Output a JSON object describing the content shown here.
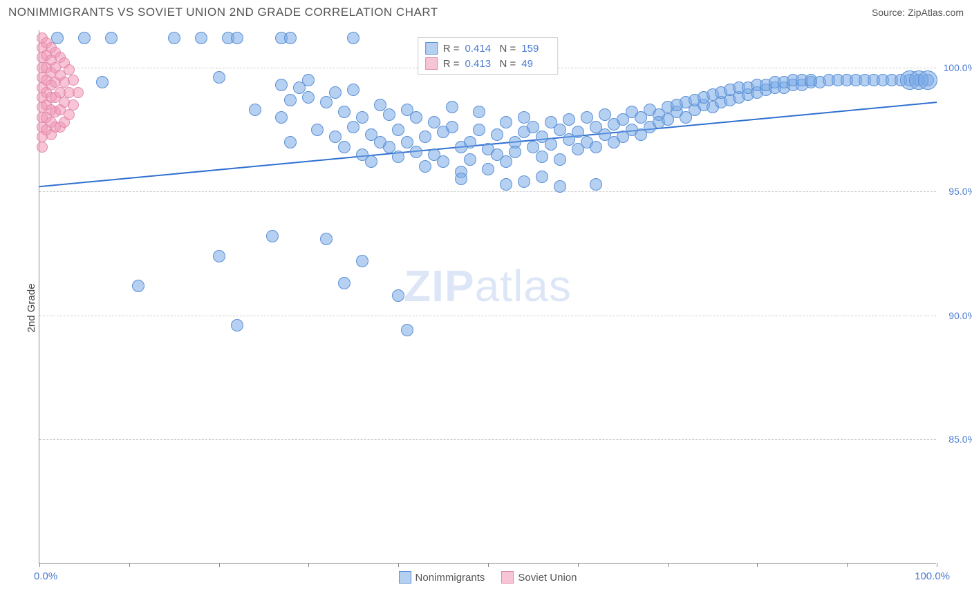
{
  "header": {
    "title": "NONIMMIGRANTS VS SOVIET UNION 2ND GRADE CORRELATION CHART",
    "source": "Source: ZipAtlas.com"
  },
  "chart": {
    "type": "scatter",
    "ylabel": "2nd Grade",
    "xlim": [
      0,
      100
    ],
    "ylim": [
      80,
      101.5
    ],
    "background_color": "#ffffff",
    "grid_color": "#cccccc",
    "axis_color": "#888888",
    "label_color": "#4a7bd0",
    "yticks": [
      85.0,
      90.0,
      95.0,
      100.0
    ],
    "ytick_labels": [
      "85.0%",
      "90.0%",
      "95.0%",
      "100.0%"
    ],
    "xticks": [
      0,
      10,
      20,
      30,
      40,
      50,
      60,
      70,
      80,
      90,
      100
    ],
    "x_start_label": "0.0%",
    "x_end_label": "100.0%",
    "watermark": "ZIPatlas",
    "trendline": {
      "color": "#2f6fd0",
      "width": 2,
      "y_at_x0": 95.2,
      "y_at_x100": 98.6
    },
    "series": [
      {
        "name": "Nonimmigrants",
        "fill": "rgba(120,170,230,0.55)",
        "stroke": "#5a8fd6",
        "R": "0.414",
        "N": "159",
        "marker_radius": 9,
        "points": [
          [
            2,
            101.2
          ],
          [
            5,
            101.2
          ],
          [
            8,
            101.2
          ],
          [
            15,
            101.2
          ],
          [
            18,
            101.2
          ],
          [
            21,
            101.2
          ],
          [
            22,
            101.2
          ],
          [
            27,
            101.2
          ],
          [
            28,
            101.2
          ],
          [
            35,
            101.2
          ],
          [
            7,
            99.4
          ],
          [
            20,
            99.6
          ],
          [
            24,
            98.3
          ],
          [
            27,
            98.0
          ],
          [
            27,
            99.3
          ],
          [
            28,
            98.7
          ],
          [
            28,
            97.0
          ],
          [
            29,
            99.2
          ],
          [
            30,
            99.5
          ],
          [
            30,
            98.8
          ],
          [
            31,
            97.5
          ],
          [
            32,
            98.6
          ],
          [
            33,
            97.2
          ],
          [
            33,
            99.0
          ],
          [
            34,
            96.8
          ],
          [
            34,
            98.2
          ],
          [
            35,
            97.6
          ],
          [
            35,
            99.1
          ],
          [
            36,
            96.5
          ],
          [
            36,
            98.0
          ],
          [
            37,
            97.3
          ],
          [
            37,
            96.2
          ],
          [
            38,
            98.5
          ],
          [
            38,
            97.0
          ],
          [
            39,
            96.8
          ],
          [
            39,
            98.1
          ],
          [
            40,
            97.5
          ],
          [
            40,
            96.4
          ],
          [
            41,
            98.3
          ],
          [
            41,
            97.0
          ],
          [
            42,
            96.6
          ],
          [
            42,
            98.0
          ],
          [
            43,
            97.2
          ],
          [
            43,
            96.0
          ],
          [
            44,
            97.8
          ],
          [
            44,
            96.5
          ],
          [
            45,
            97.4
          ],
          [
            45,
            96.2
          ],
          [
            46,
            97.6
          ],
          [
            46,
            98.4
          ],
          [
            47,
            96.8
          ],
          [
            47,
            95.8
          ],
          [
            48,
            97.0
          ],
          [
            48,
            96.3
          ],
          [
            49,
            97.5
          ],
          [
            49,
            98.2
          ],
          [
            50,
            96.7
          ],
          [
            50,
            95.9
          ],
          [
            51,
            97.3
          ],
          [
            51,
            96.5
          ],
          [
            52,
            97.8
          ],
          [
            52,
            96.2
          ],
          [
            53,
            97.0
          ],
          [
            53,
            96.6
          ],
          [
            54,
            97.4
          ],
          [
            54,
            98.0
          ],
          [
            55,
            96.8
          ],
          [
            55,
            97.6
          ],
          [
            56,
            96.4
          ],
          [
            56,
            97.2
          ],
          [
            57,
            97.8
          ],
          [
            57,
            96.9
          ],
          [
            58,
            97.5
          ],
          [
            58,
            96.3
          ],
          [
            59,
            97.1
          ],
          [
            59,
            97.9
          ],
          [
            60,
            96.7
          ],
          [
            60,
            97.4
          ],
          [
            61,
            97.0
          ],
          [
            61,
            98.0
          ],
          [
            62,
            97.6
          ],
          [
            62,
            96.8
          ],
          [
            63,
            97.3
          ],
          [
            63,
            98.1
          ],
          [
            64,
            97.7
          ],
          [
            64,
            97.0
          ],
          [
            65,
            97.9
          ],
          [
            65,
            97.2
          ],
          [
            66,
            98.2
          ],
          [
            66,
            97.5
          ],
          [
            67,
            98.0
          ],
          [
            67,
            97.3
          ],
          [
            68,
            98.3
          ],
          [
            68,
            97.6
          ],
          [
            69,
            98.1
          ],
          [
            69,
            97.8
          ],
          [
            70,
            98.4
          ],
          [
            70,
            97.9
          ],
          [
            71,
            98.2
          ],
          [
            71,
            98.5
          ],
          [
            72,
            98.0
          ],
          [
            72,
            98.6
          ],
          [
            73,
            98.3
          ],
          [
            73,
            98.7
          ],
          [
            74,
            98.5
          ],
          [
            74,
            98.8
          ],
          [
            75,
            98.4
          ],
          [
            75,
            98.9
          ],
          [
            76,
            98.6
          ],
          [
            76,
            99.0
          ],
          [
            77,
            98.7
          ],
          [
            77,
            99.1
          ],
          [
            78,
            98.8
          ],
          [
            78,
            99.2
          ],
          [
            79,
            98.9
          ],
          [
            79,
            99.2
          ],
          [
            80,
            99.0
          ],
          [
            80,
            99.3
          ],
          [
            81,
            99.1
          ],
          [
            81,
            99.3
          ],
          [
            82,
            99.2
          ],
          [
            82,
            99.4
          ],
          [
            83,
            99.2
          ],
          [
            83,
            99.4
          ],
          [
            84,
            99.3
          ],
          [
            84,
            99.5
          ],
          [
            85,
            99.3
          ],
          [
            85,
            99.5
          ],
          [
            86,
            99.4
          ],
          [
            86,
            99.5
          ],
          [
            87,
            99.4
          ],
          [
            88,
            99.5
          ],
          [
            89,
            99.5
          ],
          [
            90,
            99.5
          ],
          [
            91,
            99.5
          ],
          [
            92,
            99.5
          ],
          [
            93,
            99.5
          ],
          [
            94,
            99.5
          ],
          [
            95,
            99.5
          ],
          [
            96,
            99.5
          ],
          [
            97,
            99.5
          ],
          [
            98,
            99.5
          ],
          [
            99,
            99.5
          ],
          [
            11,
            91.2
          ],
          [
            20,
            92.4
          ],
          [
            22,
            89.6
          ],
          [
            26,
            93.2
          ],
          [
            32,
            93.1
          ],
          [
            34,
            91.3
          ],
          [
            36,
            92.2
          ],
          [
            40,
            90.8
          ],
          [
            41,
            89.4
          ],
          [
            47,
            95.5
          ],
          [
            52,
            95.3
          ],
          [
            54,
            95.4
          ],
          [
            56,
            95.6
          ],
          [
            58,
            95.2
          ],
          [
            62,
            95.3
          ]
        ],
        "big_points": [
          [
            97,
            99.5
          ],
          [
            98,
            99.5
          ],
          [
            99,
            99.5
          ]
        ]
      },
      {
        "name": "Soviet Union",
        "fill": "rgba(240,150,180,0.55)",
        "stroke": "#e08bad",
        "R": "0.413",
        "N": "49",
        "marker_radius": 8,
        "points": [
          [
            0.3,
            101.2
          ],
          [
            0.3,
            100.8
          ],
          [
            0.3,
            100.4
          ],
          [
            0.3,
            100.0
          ],
          [
            0.3,
            99.6
          ],
          [
            0.3,
            99.2
          ],
          [
            0.3,
            98.8
          ],
          [
            0.3,
            98.4
          ],
          [
            0.3,
            98.0
          ],
          [
            0.3,
            97.6
          ],
          [
            0.3,
            97.2
          ],
          [
            0.3,
            96.8
          ],
          [
            0.8,
            101.0
          ],
          [
            0.8,
            100.5
          ],
          [
            0.8,
            100.0
          ],
          [
            0.8,
            99.5
          ],
          [
            0.8,
            99.0
          ],
          [
            0.8,
            98.5
          ],
          [
            0.8,
            98.0
          ],
          [
            0.8,
            97.5
          ],
          [
            1.3,
            100.8
          ],
          [
            1.3,
            100.3
          ],
          [
            1.3,
            99.8
          ],
          [
            1.3,
            99.3
          ],
          [
            1.3,
            98.8
          ],
          [
            1.3,
            98.3
          ],
          [
            1.3,
            97.8
          ],
          [
            1.3,
            97.3
          ],
          [
            1.8,
            100.6
          ],
          [
            1.8,
            100.0
          ],
          [
            1.8,
            99.4
          ],
          [
            1.8,
            98.8
          ],
          [
            1.8,
            98.2
          ],
          [
            1.8,
            97.6
          ],
          [
            2.3,
            100.4
          ],
          [
            2.3,
            99.7
          ],
          [
            2.3,
            99.0
          ],
          [
            2.3,
            98.3
          ],
          [
            2.3,
            97.6
          ],
          [
            2.8,
            100.2
          ],
          [
            2.8,
            99.4
          ],
          [
            2.8,
            98.6
          ],
          [
            2.8,
            97.8
          ],
          [
            3.3,
            99.9
          ],
          [
            3.3,
            99.0
          ],
          [
            3.3,
            98.1
          ],
          [
            3.8,
            99.5
          ],
          [
            3.8,
            98.5
          ],
          [
            4.3,
            99.0
          ]
        ]
      }
    ],
    "bottom_legend": [
      {
        "label": "Nonimmigrants",
        "fill": "rgba(120,170,230,0.55)",
        "stroke": "#5a8fd6"
      },
      {
        "label": "Soviet Union",
        "fill": "rgba(240,150,180,0.55)",
        "stroke": "#e08bad"
      }
    ]
  }
}
